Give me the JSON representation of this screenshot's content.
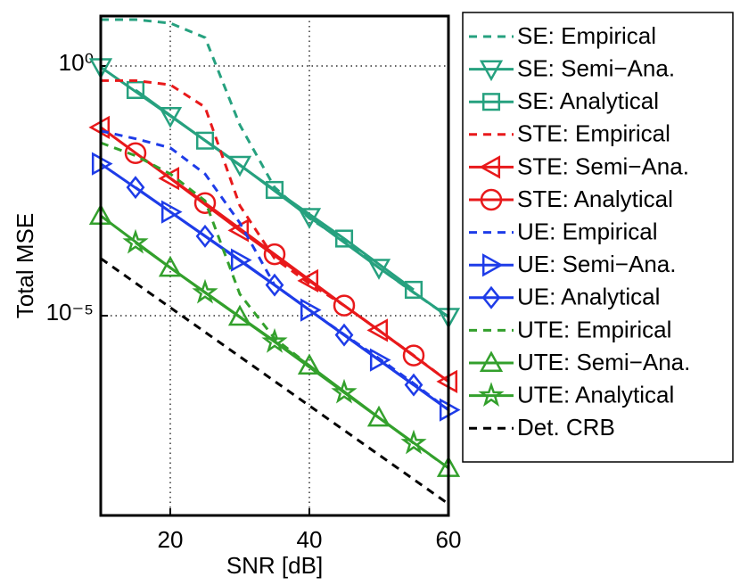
{
  "chart_data": {
    "type": "line",
    "log_y": true,
    "grid": true,
    "legend": "outside right",
    "x_label": "SNR [dB]",
    "y_label": "Total MSE",
    "xlim": [
      10,
      60
    ],
    "xticks": [
      20,
      40,
      60
    ],
    "ylim": [
      1e-09,
      10
    ],
    "yticks": [
      {
        "value": 1,
        "label": "10⁰"
      },
      {
        "value": 1e-05,
        "label": "10⁻⁵"
      }
    ],
    "series": [
      {
        "name": "SE: Empirical",
        "color": "#26a17f",
        "dash": true,
        "marker": "none",
        "x": [
          10,
          15,
          20,
          25,
          30,
          35,
          40,
          45,
          50,
          55,
          60
        ],
        "values": [
          8.5,
          8.5,
          7.2,
          3.7,
          0.066,
          0.0037,
          0.00089,
          0.00032,
          9.1e-05,
          2.9e-05,
          9.5e-06
        ]
      },
      {
        "name": "SE: Semi−Ana.",
        "color": "#26a17f",
        "dash": false,
        "marker": "v",
        "x": [
          10,
          20,
          30,
          40,
          50,
          60
        ],
        "values": [
          0.95,
          0.1,
          0.0105,
          0.00095,
          9.1e-05,
          9.5e-06
        ]
      },
      {
        "name": "SE: Analytical",
        "color": "#26a17f",
        "dash": false,
        "marker": "s",
        "x": [
          15,
          25,
          35,
          45,
          55
        ],
        "values": [
          0.33,
          0.032,
          0.0033,
          0.00035,
          3.3e-05
        ]
      },
      {
        "name": "STE: Empirical",
        "color": "#e8191b",
        "dash": true,
        "marker": "none",
        "x": [
          10,
          15,
          20,
          25,
          30,
          35,
          40,
          45,
          50,
          55,
          60
        ],
        "values": [
          0.51,
          0.51,
          0.42,
          0.15,
          0.0016,
          0.00014,
          4.4e-05,
          1.6e-05,
          5.1e-06,
          1.6e-06,
          4.8e-07
        ]
      },
      {
        "name": "STE: Semi−Ana.",
        "color": "#e8191b",
        "dash": false,
        "marker": "<",
        "x": [
          10,
          20,
          30,
          40,
          50,
          60
        ],
        "values": [
          0.059,
          0.0056,
          0.00051,
          5e-05,
          5.1e-06,
          4.8e-07
        ]
      },
      {
        "name": "STE: Analytical",
        "color": "#e8191b",
        "dash": false,
        "marker": "o",
        "x": [
          15,
          25,
          35,
          45,
          55
        ],
        "values": [
          0.018,
          0.0018,
          0.00017,
          1.6e-05,
          1.6e-06
        ]
      },
      {
        "name": "UE: Empirical",
        "color": "#1e3ce8",
        "dash": true,
        "marker": "none",
        "x": [
          10,
          15,
          20,
          25,
          30,
          35,
          40,
          45,
          50,
          55,
          60
        ],
        "values": [
          0.05,
          0.035,
          0.023,
          0.0069,
          0.00072,
          4.1e-05,
          1.3e-05,
          4.2e-06,
          1.4e-06,
          4.4e-07,
          1.3e-07
        ]
      },
      {
        "name": "UE: Semi−Ana.",
        "color": "#1e3ce8",
        "dash": false,
        "marker": ">",
        "x": [
          10,
          20,
          30,
          40,
          50,
          60
        ],
        "values": [
          0.011,
          0.0012,
          0.00013,
          1.3e-05,
          1.3e-06,
          1.3e-07
        ]
      },
      {
        "name": "UE: Analytical",
        "color": "#1e3ce8",
        "dash": false,
        "marker": "d",
        "x": [
          15,
          25,
          35,
          45,
          55
        ],
        "values": [
          0.0037,
          0.00039,
          4.1e-05,
          4.1e-06,
          4.1e-07
        ]
      },
      {
        "name": "UTE: Empirical",
        "color": "#33a02c",
        "dash": true,
        "marker": "none",
        "x": [
          10,
          15,
          20,
          25,
          30,
          35,
          40,
          45,
          50,
          55,
          60
        ],
        "values": [
          0.029,
          0.016,
          0.0069,
          0.002,
          2.7e-05,
          3.5e-06,
          1e-06,
          2.9e-07,
          9.1e-08,
          2.8e-08,
          8.9e-09
        ]
      },
      {
        "name": "UTE: Semi−Ana.",
        "color": "#33a02c",
        "dash": false,
        "marker": "^",
        "x": [
          10,
          20,
          30,
          40,
          50,
          60
        ],
        "values": [
          0.001,
          9.1e-05,
          9.5e-06,
          1e-06,
          9.1e-08,
          8.9e-09
        ]
      },
      {
        "name": "UTE: Analytical",
        "color": "#33a02c",
        "dash": false,
        "marker": "*",
        "x": [
          15,
          25,
          35,
          45,
          55
        ],
        "values": [
          0.00029,
          2.9e-05,
          3e-06,
          2.9e-07,
          2.8e-08
        ]
      },
      {
        "name": "Det. CRB",
        "color": "#000000",
        "dash": true,
        "marker": "none",
        "x": [
          10,
          60
        ],
        "values": [
          0.00014,
          1.7e-09
        ]
      }
    ]
  }
}
